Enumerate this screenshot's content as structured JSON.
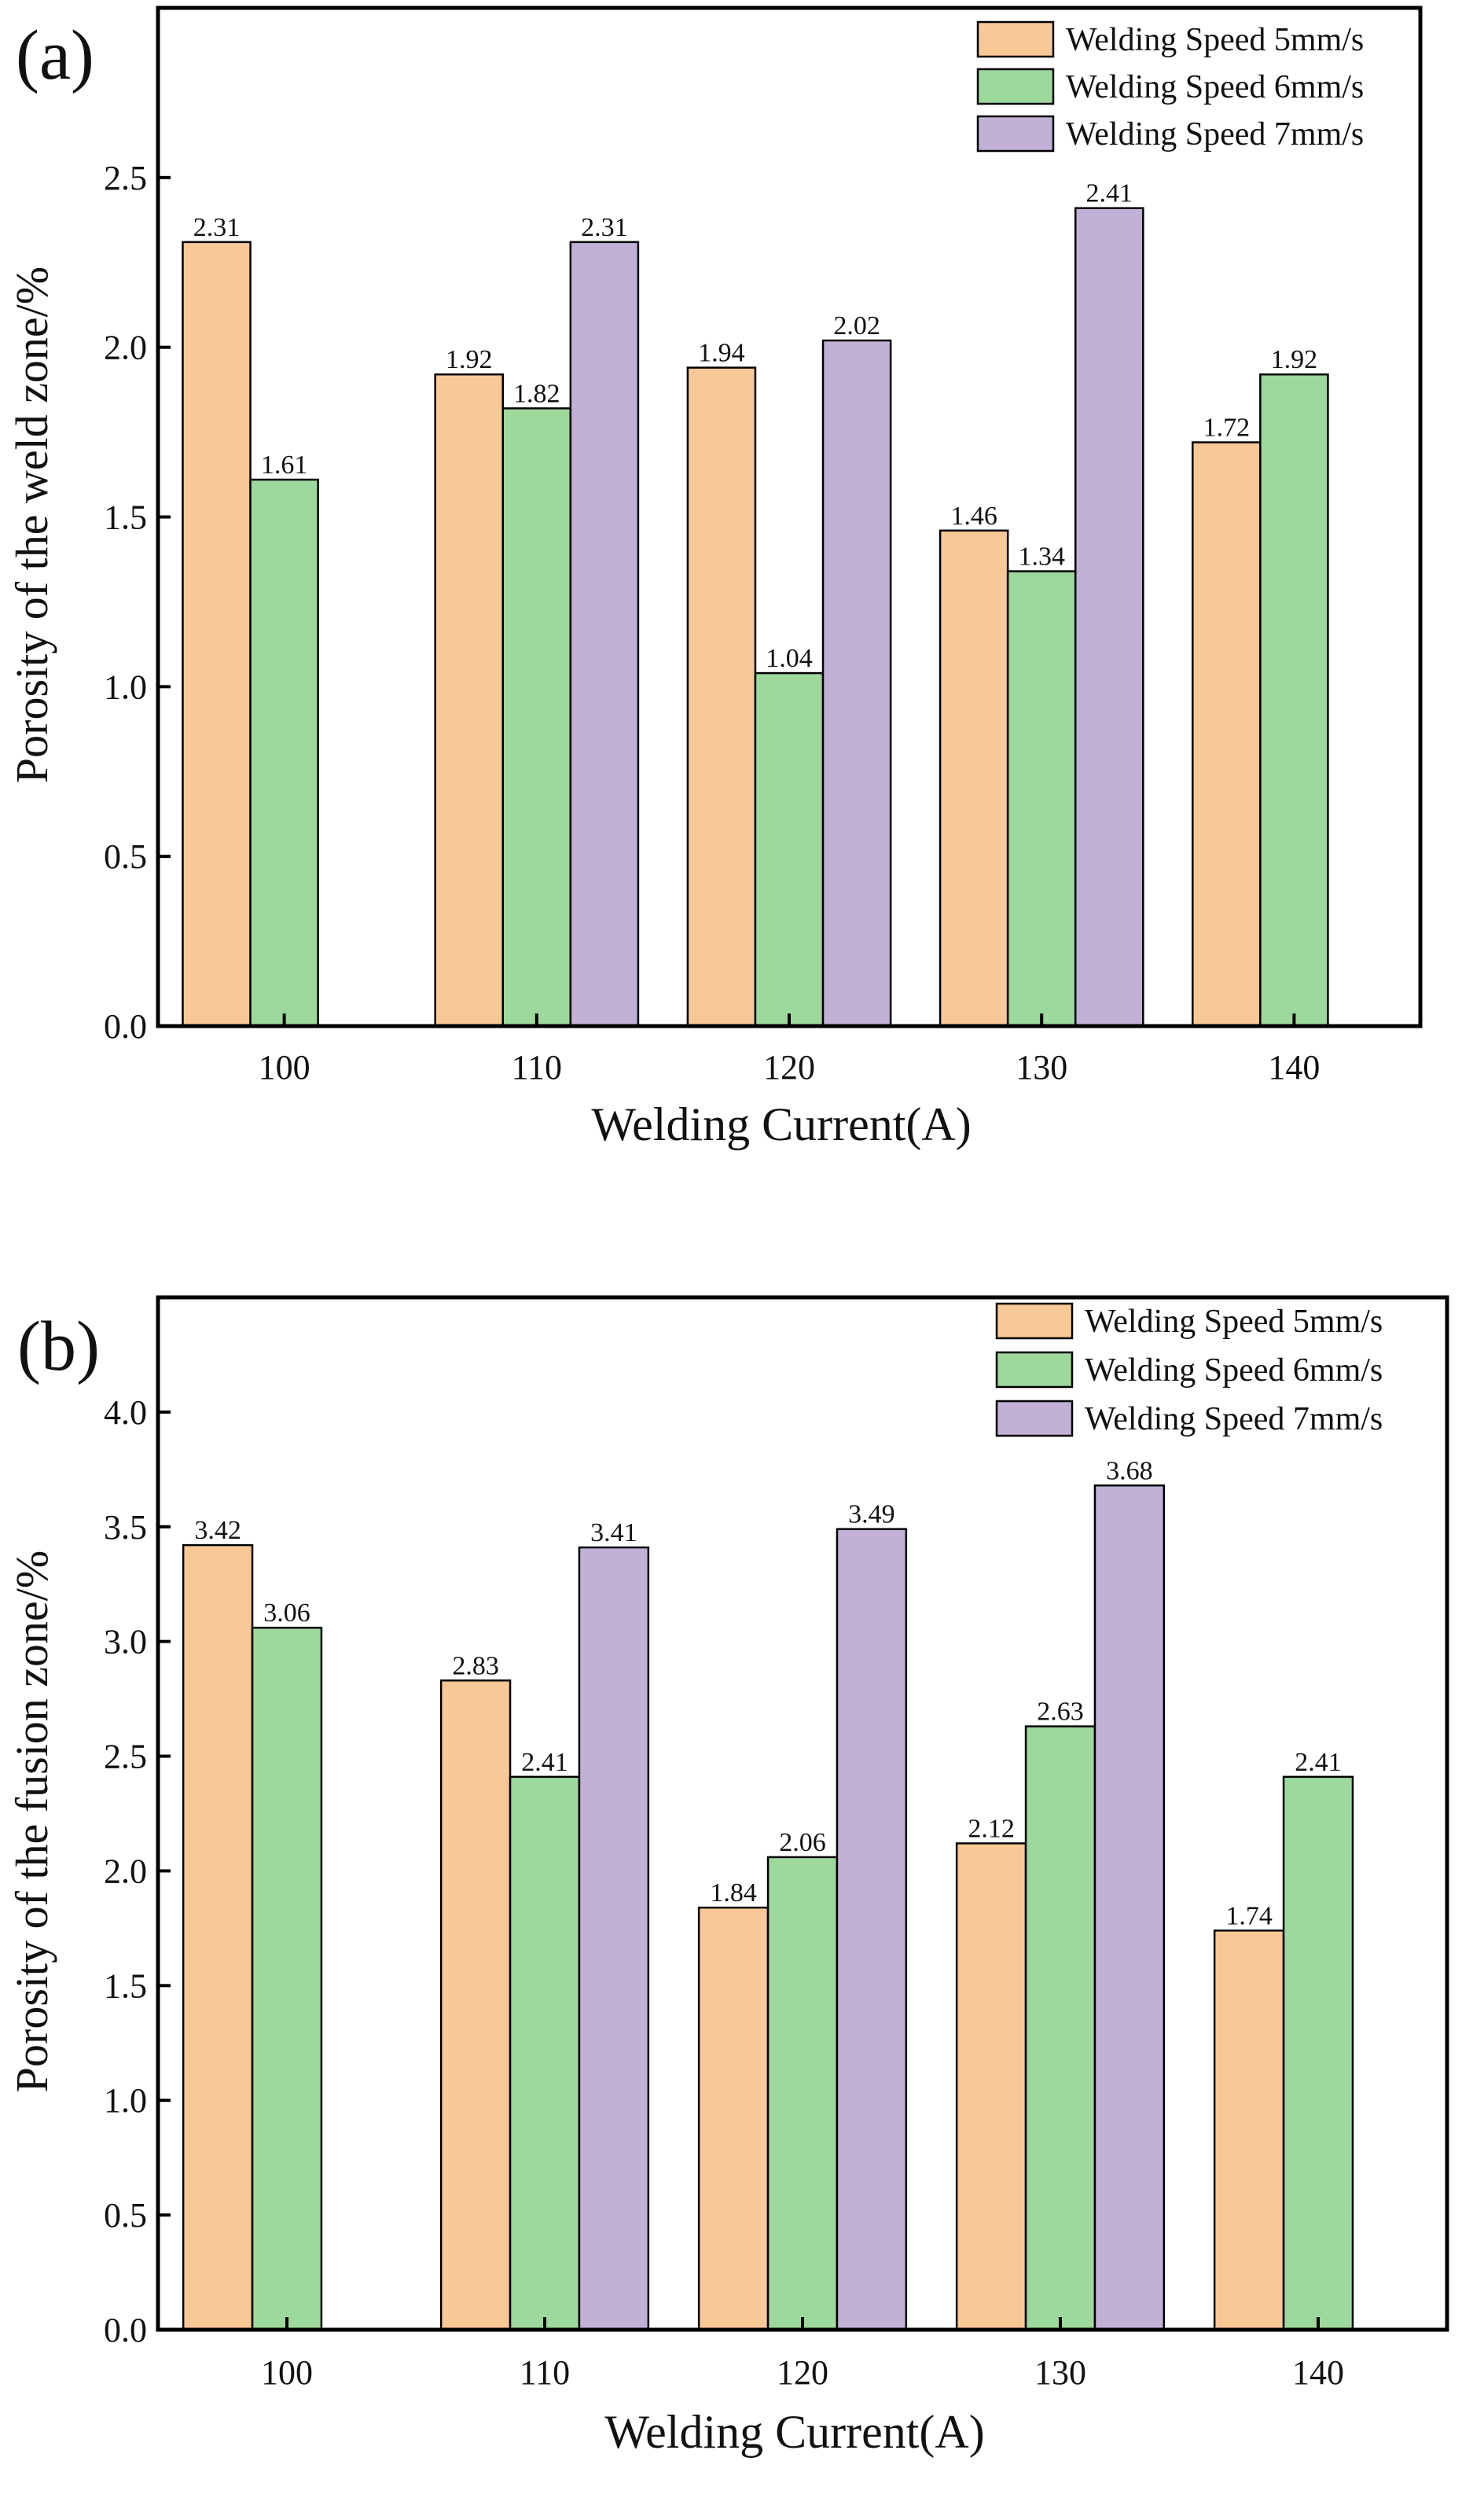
{
  "colors": {
    "s5": "#F9C897",
    "s6": "#9DD89C",
    "s7": "#C2B1D6"
  },
  "chart_data": [
    {
      "type": "bar",
      "panel_label": "(a)",
      "title": "",
      "xlabel": "Welding Current(A)",
      "ylabel": "Porosity of the weld zone/%",
      "categories": [
        "100",
        "110",
        "120",
        "130",
        "140"
      ],
      "xlim": [
        95,
        145
      ],
      "ylim": [
        0,
        3.0
      ],
      "yticks": [
        "0.0",
        "0.5",
        "1.0",
        "1.5",
        "2.0",
        "2.5"
      ],
      "legend_position": "top-right",
      "grid": false,
      "series": [
        {
          "name": "Welding Speed 5mm/s",
          "color": "#F9C897",
          "values": [
            2.31,
            1.92,
            1.94,
            1.46,
            1.72
          ],
          "labels": [
            "2.31",
            "1.92",
            "1.94",
            "1.46",
            "1.72"
          ]
        },
        {
          "name": "Welding Speed 6mm/s",
          "color": "#9DD89C",
          "values": [
            1.61,
            1.82,
            1.04,
            1.34,
            1.92
          ],
          "labels": [
            "1.61",
            "1.82",
            "1.04",
            "1.34",
            "1.92"
          ]
        },
        {
          "name": "Welding Speed 7mm/s",
          "color": "#C2B1D6",
          "values": [
            null,
            2.31,
            2.02,
            2.41,
            null
          ],
          "labels": [
            null,
            "2.31",
            "2.02",
            "2.41",
            null
          ]
        }
      ]
    },
    {
      "type": "bar",
      "panel_label": "(b)",
      "title": "",
      "xlabel": "Welding Current(A)",
      "ylabel": "Porosity of the fusion zone/%",
      "categories": [
        "100",
        "110",
        "120",
        "130",
        "140"
      ],
      "xlim": [
        95,
        145
      ],
      "ylim": [
        0,
        4.5
      ],
      "yticks": [
        "0.0",
        "0.5",
        "1.0",
        "1.5",
        "2.0",
        "2.5",
        "3.0",
        "3.5",
        "4.0"
      ],
      "legend_position": "top-right",
      "grid": false,
      "series": [
        {
          "name": "Welding Speed 5mm/s",
          "color": "#F9C897",
          "values": [
            3.42,
            2.83,
            1.84,
            2.12,
            1.74
          ],
          "labels": [
            "3.42",
            "2.83",
            "1.84",
            "2.12",
            "1.74"
          ]
        },
        {
          "name": "Welding Speed 6mm/s",
          "color": "#9DD89C",
          "values": [
            3.06,
            2.41,
            2.06,
            2.63,
            2.41
          ],
          "labels": [
            "3.06",
            "2.41",
            "2.06",
            "2.63",
            "2.41"
          ]
        },
        {
          "name": "Welding Speed 7mm/s",
          "color": "#C2B1D6",
          "values": [
            null,
            3.41,
            3.49,
            3.68,
            null
          ],
          "labels": [
            null,
            "3.41",
            "3.49",
            "3.68",
            null
          ]
        }
      ]
    }
  ]
}
